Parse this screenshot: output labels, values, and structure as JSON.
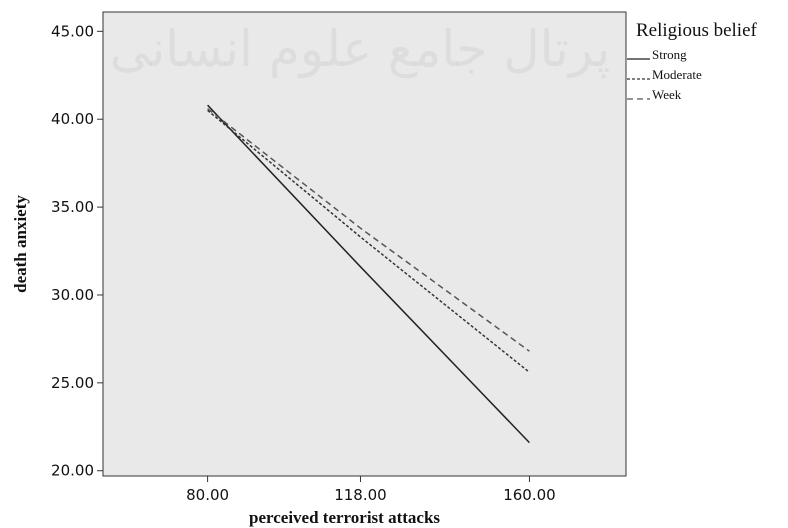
{
  "watermark": {
    "text": "پرتال جامع علوم انسانی"
  },
  "chart_data": {
    "type": "line",
    "xlabel": "perceived terrorist attacks",
    "ylabel": "death anxiety",
    "x": [
      80,
      118,
      160
    ],
    "x_tick_labels": [
      "80.00",
      "118.00",
      "160.00"
    ],
    "xlim": [
      54,
      184
    ],
    "ylim": [
      19.7,
      46.1
    ],
    "y_ticks": [
      20,
      25,
      30,
      35,
      40,
      45
    ],
    "y_tick_labels": [
      "20.00",
      "25.00",
      "30.00",
      "35.00",
      "40.00",
      "45.00"
    ],
    "grid": false,
    "plot_background": "#e9e9e9",
    "legend": {
      "title": "Religious belief",
      "placement": "outside-top-right"
    },
    "series": [
      {
        "name": "Strong",
        "values": [
          40.8,
          31.6,
          21.6
        ],
        "dash": "solid",
        "color": "#222222"
      },
      {
        "name": "Moderate",
        "values": [
          40.5,
          33.3,
          25.6
        ],
        "dash": "dotted",
        "color": "#333333"
      },
      {
        "name": "Week",
        "values": [
          40.6,
          33.8,
          26.8
        ],
        "dash": "dashed",
        "color": "#555555"
      }
    ]
  }
}
